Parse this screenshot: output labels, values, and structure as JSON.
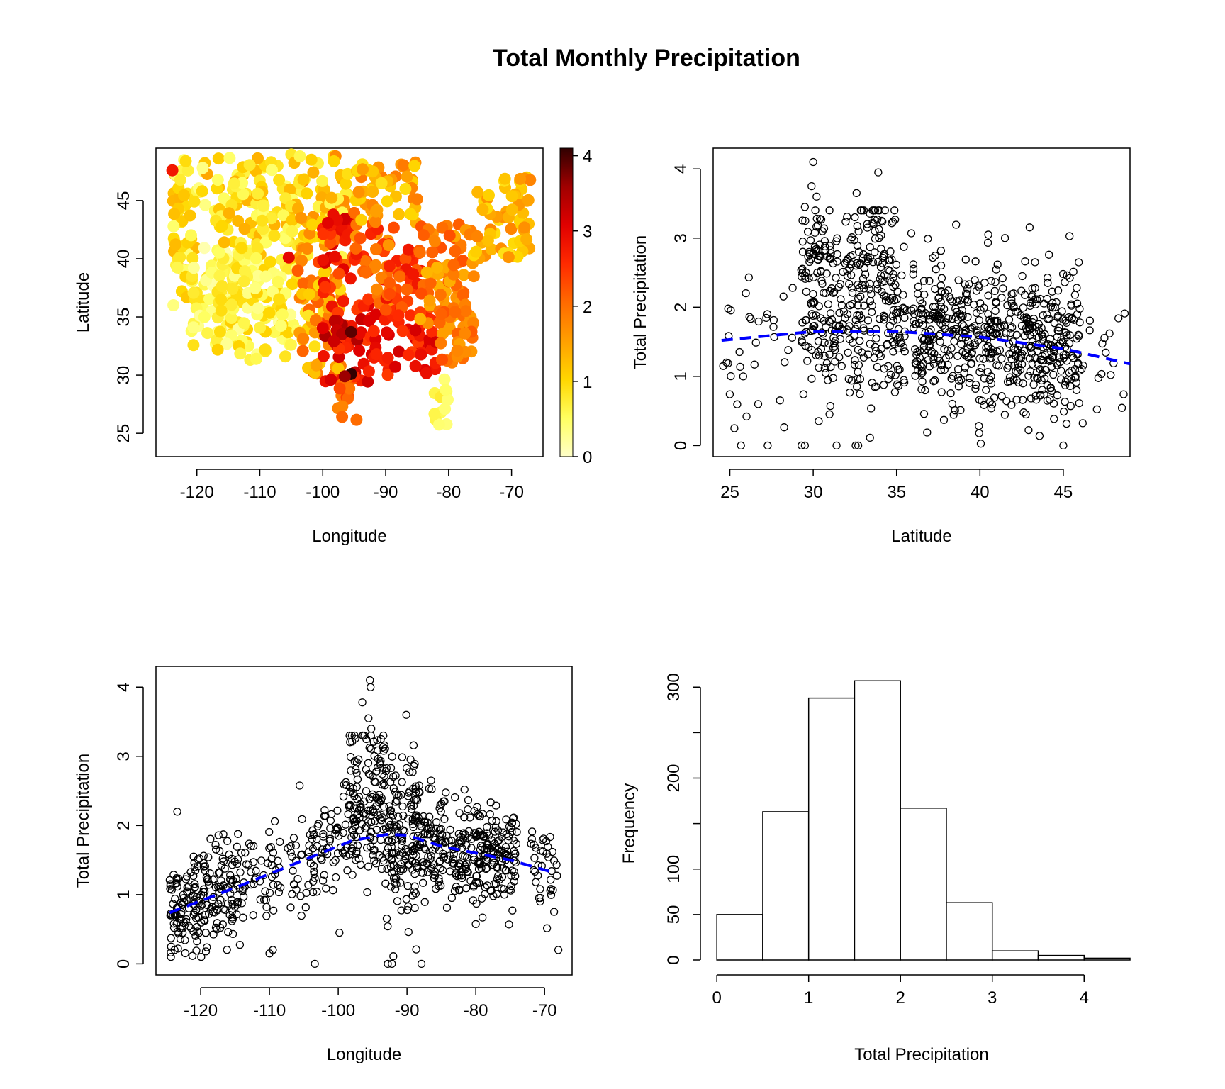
{
  "title": "Total Monthly Precipitation",
  "colors": {
    "point_ramp": [
      "#ffffc8",
      "#ffff60",
      "#ffd700",
      "#ff9f00",
      "#ff6a00",
      "#ff2a00",
      "#e00000",
      "#a00000",
      "#300000"
    ],
    "smooth_line": "#0000ff",
    "axis": "#000000"
  },
  "chart_data": [
    {
      "type": "scatter",
      "panel": "map",
      "xlabel": "Longitude",
      "ylabel": "Latitude",
      "xlim": [
        -126.5,
        -65
      ],
      "ylim": [
        23,
        49.5
      ],
      "xticks": [
        -120,
        -110,
        -100,
        -90,
        -80,
        -70
      ],
      "yticks": [
        25,
        30,
        35,
        40,
        45
      ],
      "color_scale": {
        "min": 0,
        "max": 4.1,
        "ticks": [
          0,
          1,
          2,
          3,
          4
        ]
      },
      "regions": [
        {
          "lon": [
            -124,
            -117
          ],
          "lat": [
            44,
            48.5
          ],
          "z": [
            0.3,
            1.5
          ]
        },
        {
          "lon": [
            -124,
            -120
          ],
          "lat": [
            36,
            44
          ],
          "z": [
            0.3,
            1.4
          ]
        },
        {
          "lon": [
            -121,
            -113
          ],
          "lat": [
            32.5,
            41
          ],
          "z": [
            0.1,
            0.9
          ]
        },
        {
          "lon": [
            -117,
            -104
          ],
          "lat": [
            31,
            40
          ],
          "z": [
            0.2,
            1.1
          ]
        },
        {
          "lon": [
            -117,
            -104
          ],
          "lat": [
            40,
            49
          ],
          "z": [
            0.4,
            1.4
          ]
        },
        {
          "lon": [
            -104,
            -96
          ],
          "lat": [
            40,
            49
          ],
          "z": [
            0.6,
            1.8
          ]
        },
        {
          "lon": [
            -104,
            -97
          ],
          "lat": [
            30,
            40
          ],
          "z": [
            0.8,
            2.4
          ]
        },
        {
          "lon": [
            -100,
            -95
          ],
          "lat": [
            36,
            44
          ],
          "z": [
            2.0,
            3.2
          ]
        },
        {
          "lon": [
            -100,
            -92
          ],
          "lat": [
            29,
            36
          ],
          "z": [
            2.4,
            3.5
          ]
        },
        {
          "lon": [
            -98,
            -94
          ],
          "lat": [
            26,
            30
          ],
          "z": [
            1.8,
            2.6
          ]
        },
        {
          "lon": [
            -95,
            -88
          ],
          "lat": [
            36,
            43
          ],
          "z": [
            1.6,
            2.8
          ]
        },
        {
          "lon": [
            -92,
            -82
          ],
          "lat": [
            30,
            35.5
          ],
          "z": [
            2.4,
            3.2
          ]
        },
        {
          "lon": [
            -90,
            -84
          ],
          "lat": [
            35,
            41
          ],
          "z": [
            2.0,
            2.9
          ]
        },
        {
          "lon": [
            -95,
            -85
          ],
          "lat": [
            43,
            48.5
          ],
          "z": [
            0.9,
            1.9
          ]
        },
        {
          "lon": [
            -85,
            -76
          ],
          "lat": [
            34,
            43
          ],
          "z": [
            1.3,
            2.3
          ]
        },
        {
          "lon": [
            -82.5,
            -80
          ],
          "lat": [
            25,
            30
          ],
          "z": [
            0.3,
            0.8
          ]
        },
        {
          "lon": [
            -76,
            -67
          ],
          "lat": [
            40,
            47
          ],
          "z": [
            0.9,
            1.8
          ]
        },
        {
          "lon": [
            -82,
            -76
          ],
          "lat": [
            31,
            36
          ],
          "z": [
            1.5,
            2.3
          ]
        }
      ],
      "highlights": [
        {
          "lon": -95.5,
          "lat": 33.7,
          "z": 3.9
        },
        {
          "lon": -95.5,
          "lat": 30.1,
          "z": 4.1
        },
        {
          "lon": -96.5,
          "lat": 29.9,
          "z": 3.6
        },
        {
          "lon": -123.9,
          "lat": 47.6,
          "z": 2.8
        },
        {
          "lon": -105.4,
          "lat": 40.1,
          "z": 3.0
        }
      ]
    },
    {
      "type": "scatter",
      "panel": "latitude",
      "xlabel": "Latitude",
      "ylabel": "Total Precipitation",
      "xlim": [
        24,
        49
      ],
      "ylim": [
        -0.16,
        4.3
      ],
      "xticks": [
        25,
        30,
        35,
        40,
        45
      ],
      "yticks": [
        0,
        1,
        2,
        3,
        4
      ],
      "trend": {
        "x": [
          24.5,
          30,
          35,
          40,
          45,
          49
        ],
        "y": [
          1.52,
          1.65,
          1.65,
          1.57,
          1.4,
          1.18
        ]
      },
      "outliers": [
        [
          30.0,
          4.1
        ],
        [
          33.9,
          3.95
        ],
        [
          29.9,
          3.75
        ],
        [
          30.2,
          3.6
        ],
        [
          32.6,
          3.65
        ],
        [
          34.3,
          3.4
        ],
        [
          32.5,
          3.3
        ],
        [
          29.5,
          3.45
        ],
        [
          40.5,
          3.05
        ],
        [
          41.5,
          3.0
        ],
        [
          29.3,
          0.0
        ],
        [
          29.5,
          0.0
        ],
        [
          31.4,
          0.0
        ],
        [
          32.7,
          0.0
        ],
        [
          45.0,
          0.0
        ],
        [
          26.0,
          0.42
        ],
        [
          26.7,
          0.6
        ],
        [
          24.6,
          1.15
        ],
        [
          24.8,
          1.2
        ],
        [
          25.8,
          1.0
        ]
      ]
    },
    {
      "type": "scatter",
      "panel": "longitude",
      "xlabel": "Longitude",
      "ylabel": "Total Precipitation",
      "xlim": [
        -126.5,
        -66
      ],
      "ylim": [
        -0.16,
        4.3
      ],
      "xticks": [
        -120,
        -110,
        -100,
        -90,
        -80,
        -70
      ],
      "yticks": [
        0,
        1,
        2,
        3,
        4
      ],
      "trend": {
        "x": [
          -124.5,
          -115,
          -105,
          -98,
          -93,
          -90,
          -85,
          -80,
          -75,
          -69
        ],
        "y": [
          0.74,
          1.1,
          1.5,
          1.78,
          1.87,
          1.86,
          1.7,
          1.6,
          1.5,
          1.33
        ]
      },
      "outliers": [
        [
          -95.4,
          4.1
        ],
        [
          -95.3,
          4.0
        ],
        [
          -96.5,
          3.78
        ],
        [
          -95.6,
          3.55
        ],
        [
          -95.2,
          3.4
        ],
        [
          -90.1,
          3.6
        ],
        [
          -92.8,
          0.0
        ],
        [
          -92.2,
          0.0
        ],
        [
          -87.9,
          0.0
        ],
        [
          -103.4,
          0.0
        ],
        [
          -123.8,
          0.2
        ],
        [
          -68.0,
          0.2
        ],
        [
          -123.4,
          2.2
        ],
        [
          -110.0,
          0.15
        ],
        [
          -109.5,
          0.2
        ]
      ]
    },
    {
      "type": "bar",
      "panel": "histogram",
      "xlabel": "Total Precipitation",
      "ylabel": "Frequency",
      "categories": [
        "0-0.5",
        "0.5-1",
        "1-1.5",
        "1.5-2",
        "2-2.5",
        "2.5-3",
        "3-3.5",
        "3.5-4",
        "4-4.5"
      ],
      "bins": [
        0,
        0.5,
        1,
        1.5,
        2,
        2.5,
        3,
        3.5,
        4,
        4.5
      ],
      "values": [
        50,
        163,
        288,
        307,
        167,
        63,
        10,
        5,
        2
      ],
      "xlim": [
        -0.04,
        4.5
      ],
      "ylim": [
        0,
        315
      ],
      "xticks": [
        0,
        1,
        2,
        3,
        4
      ],
      "yticks": [
        0,
        50,
        100,
        200,
        300
      ]
    }
  ]
}
